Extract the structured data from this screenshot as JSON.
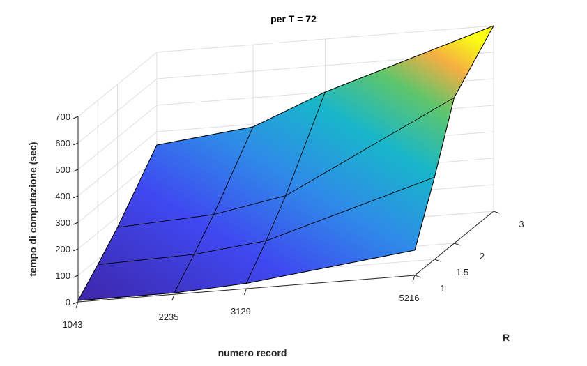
{
  "chart_data": {
    "type": "surface",
    "title": "per T = 72",
    "xlabel": "numero record",
    "ylabel": "R",
    "zlabel": "tempo di computazione (sec)",
    "x": [
      1043,
      2235,
      3129,
      5216
    ],
    "y": [
      1,
      1.5,
      2,
      3
    ],
    "x_ticks": [
      "1043",
      "2235",
      "3129",
      "5216"
    ],
    "y_ticks": [
      "1",
      "1.5",
      "2",
      "3"
    ],
    "z_ticks": [
      "0",
      "100",
      "200",
      "300",
      "400",
      "500",
      "600",
      "700"
    ],
    "zlim": [
      0,
      700
    ],
    "grid": true,
    "colormap": "parula",
    "z": [
      [
        5,
        5,
        20,
        95
      ],
      [
        80,
        90,
        120,
        310
      ],
      [
        160,
        180,
        230,
        550
      ],
      [
        350,
        390,
        500,
        700
      ]
    ]
  }
}
